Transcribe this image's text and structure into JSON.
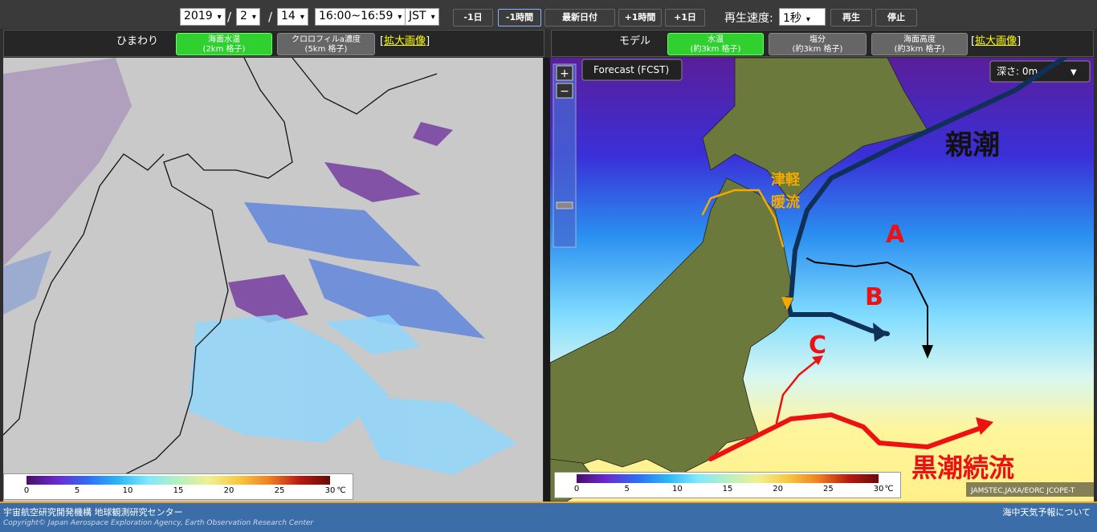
{
  "toolbar": {
    "year": "2019",
    "sep1": "/",
    "month": "2",
    "sep2": "/",
    "day": "14",
    "hour": "16:00~16:59",
    "timezone": "JST",
    "buttons": [
      "-1日",
      "-1時間",
      "最新日付",
      "+1時間",
      "+1日"
    ],
    "speed_label": "再生速度:",
    "speed": "1秒",
    "play": "再生",
    "stop": "停止"
  },
  "left_panel": {
    "label": "ひまわり",
    "tabs": [
      {
        "title": "海面水温",
        "sub": "(2km 格子)",
        "active": true
      },
      {
        "title": "クロロフィルa濃度",
        "sub": "(5km 格子)",
        "active": false
      }
    ],
    "link_open": "[",
    "link": "拡大画像",
    "link_close": "]",
    "colorbar": {
      "ticks": [
        0,
        5,
        10,
        15,
        20,
        25,
        30
      ],
      "unit": "℃"
    }
  },
  "right_panel": {
    "label": "モデル",
    "tabs": [
      {
        "title": "水温",
        "sub": "(約3km 格子)",
        "active": true
      },
      {
        "title": "塩分",
        "sub": "(約3km 格子)",
        "active": false
      },
      {
        "title": "海面高度",
        "sub": "(約3km 格子)",
        "active": false
      }
    ],
    "link_open": "[",
    "link": "拡大画像",
    "link_close": "]",
    "colorbar": {
      "ticks": [
        0,
        5,
        10,
        15,
        20,
        25,
        30
      ],
      "unit": "℃"
    },
    "map": {
      "mode": "Forecast (FCST)",
      "zoom_in": "+",
      "zoom_out": "−",
      "depth": "深さ: 0m",
      "annotations": {
        "oyashio": "親潮",
        "tsugaru_1": "津軽",
        "tsugaru_2": "暖流",
        "a": "A",
        "b": "B",
        "c": "C",
        "kuroshio": "黒潮続流"
      },
      "credit": "JAMSTEC,JAXA/EORC JCOPE-T"
    }
  },
  "footer": {
    "org": "宇宙航空研究開発機構 地球観測研究センター",
    "copyright": "Copyright© Japan Aerospace Exploration Agency, Earth Observation Research Center",
    "about": "海中天気予報について"
  }
}
